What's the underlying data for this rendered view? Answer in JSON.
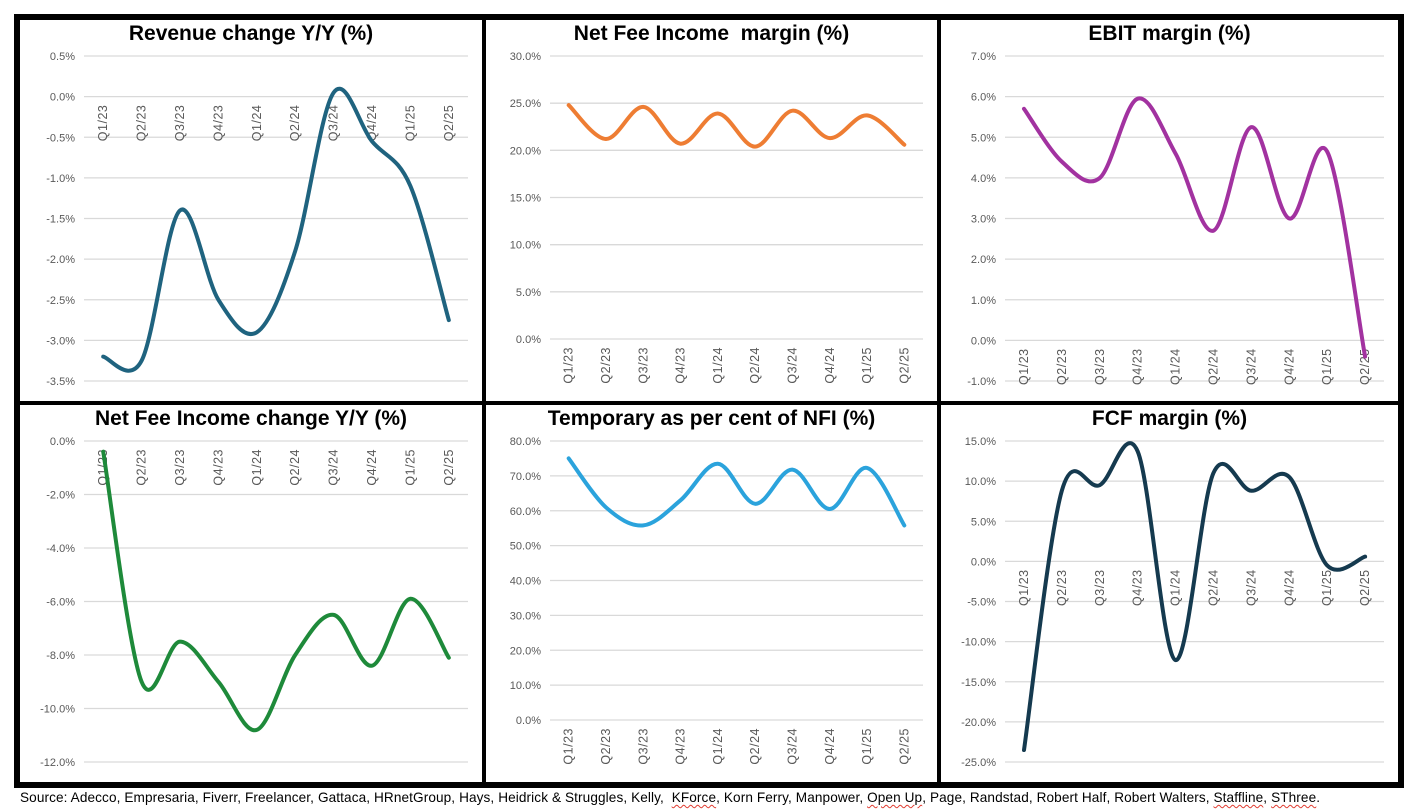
{
  "chart_data": [
    {
      "type": "line",
      "title": "Revenue change Y/Y (%)",
      "categories": [
        "Q1/23",
        "Q2/23",
        "Q3/23",
        "Q4/23",
        "Q1/24",
        "Q2/24",
        "Q3/24",
        "Q4/24",
        "Q1/25",
        "Q2/25"
      ],
      "values": [
        -3.2,
        -3.25,
        -1.4,
        -2.5,
        -2.9,
        -1.9,
        0.05,
        -0.55,
        -1.1,
        -2.75
      ],
      "color": "#1F637F",
      "ylim": [
        -3.5,
        0.5
      ],
      "ytick": 0.5,
      "tick_suffix": "%",
      "grid": true,
      "smoothed": true,
      "x_labels_below_plot": false,
      "xlabel": "",
      "ylabel": ""
    },
    {
      "type": "line",
      "title": "Net Fee Income  margin (%)",
      "categories": [
        "Q1/23",
        "Q2/23",
        "Q3/23",
        "Q4/23",
        "Q1/24",
        "Q2/24",
        "Q3/24",
        "Q4/24",
        "Q1/25",
        "Q2/25"
      ],
      "values": [
        24.8,
        21.2,
        24.6,
        20.7,
        23.9,
        20.4,
        24.2,
        21.3,
        23.7,
        20.6
      ],
      "color": "#EE7D33",
      "ylim": [
        0,
        30
      ],
      "ytick": 5,
      "tick_suffix": "%",
      "grid": true,
      "smoothed": true,
      "x_labels_below_plot": true,
      "xlabel": "",
      "ylabel": ""
    },
    {
      "type": "line",
      "title": "EBIT margin (%)",
      "categories": [
        "Q1/23",
        "Q2/23",
        "Q3/23",
        "Q4/23",
        "Q1/24",
        "Q2/24",
        "Q3/24",
        "Q4/24",
        "Q1/25",
        "Q2/25"
      ],
      "values": [
        5.7,
        4.4,
        4.0,
        5.95,
        4.6,
        2.7,
        5.25,
        3.0,
        4.65,
        -0.4
      ],
      "color": "#A232A0",
      "ylim": [
        -1,
        7
      ],
      "ytick": 1,
      "tick_suffix": "%",
      "grid": true,
      "smoothed": true,
      "x_labels_below_plot": false,
      "xlabel": "",
      "ylabel": ""
    },
    {
      "type": "line",
      "title": "Net Fee Income change Y/Y (%)",
      "categories": [
        "Q1/23",
        "Q2/23",
        "Q3/23",
        "Q4/23",
        "Q1/24",
        "Q2/24",
        "Q3/24",
        "Q4/24",
        "Q1/25",
        "Q2/25"
      ],
      "values": [
        -0.4,
        -9.0,
        -7.5,
        -9.0,
        -10.8,
        -8.0,
        -6.5,
        -8.4,
        -5.9,
        -8.1
      ],
      "color": "#1E8A3A",
      "ylim": [
        -12,
        0
      ],
      "ytick": 2,
      "tick_suffix": "%",
      "grid": true,
      "smoothed": true,
      "x_labels_below_plot": false,
      "xlabel": "",
      "ylabel": ""
    },
    {
      "type": "line",
      "title": "Temporary as per cent of NFI (%)",
      "categories": [
        "Q1/23",
        "Q2/23",
        "Q3/23",
        "Q4/23",
        "Q1/24",
        "Q2/24",
        "Q3/24",
        "Q4/24",
        "Q1/25",
        "Q2/25"
      ],
      "values": [
        75,
        61,
        55.8,
        63,
        73.5,
        62,
        71.8,
        60.5,
        72.3,
        55.8
      ],
      "color": "#2BA3DC",
      "ylim": [
        0,
        80
      ],
      "ytick": 10,
      "tick_suffix": "%",
      "grid": true,
      "smoothed": true,
      "x_labels_below_plot": true,
      "xlabel": "",
      "ylabel": ""
    },
    {
      "type": "line",
      "title": "FCF margin (%)",
      "categories": [
        "Q1/23",
        "Q2/23",
        "Q3/23",
        "Q4/23",
        "Q1/24",
        "Q2/24",
        "Q3/24",
        "Q4/24",
        "Q1/25",
        "Q2/25"
      ],
      "values": [
        -23.5,
        8.8,
        9.5,
        13.7,
        -12.3,
        11.0,
        8.8,
        10.5,
        -0.5,
        0.6
      ],
      "color": "#153A4F",
      "ylim": [
        -25,
        15
      ],
      "ytick": 5,
      "tick_suffix": "%",
      "grid": true,
      "smoothed": true,
      "x_labels_below_plot": false,
      "xlabel": "",
      "ylabel": ""
    }
  ],
  "style": {
    "gridline_color": "#d9d9d9",
    "tick_label_color": "#595959",
    "line_width": 4
  },
  "source_note": {
    "segments": [
      {
        "text": "Source: Adecco, Empresaria, Fiverr, Freelancer, Gattaca, HRnetGroup, Hays, Heidrick & Struggles, Kelly,  ",
        "spellcheck_underline": false
      },
      {
        "text": "KForce",
        "spellcheck_underline": true
      },
      {
        "text": ", Korn Ferry, Manpower, ",
        "spellcheck_underline": false
      },
      {
        "text": "Open Up",
        "spellcheck_underline": true
      },
      {
        "text": ", Page, Randstad, Robert Half, Robert Walters, ",
        "spellcheck_underline": false
      },
      {
        "text": "Staffline",
        "spellcheck_underline": true
      },
      {
        "text": ", ",
        "spellcheck_underline": false
      },
      {
        "text": "SThree",
        "spellcheck_underline": true
      },
      {
        "text": ".",
        "spellcheck_underline": false
      }
    ]
  }
}
